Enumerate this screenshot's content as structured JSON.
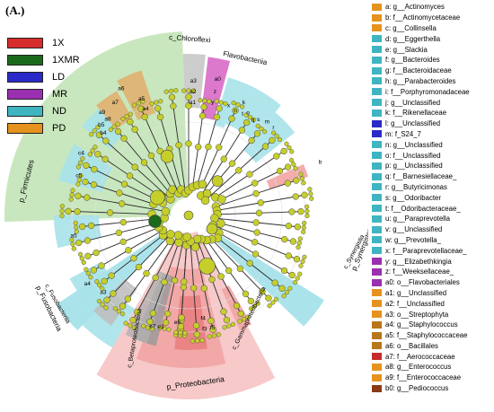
{
  "figure_label": "(A.)",
  "groups": [
    {
      "label": "1X",
      "color": "#d62c2c"
    },
    {
      "label": "1XMR",
      "color": "#1b6a1b"
    },
    {
      "label": "LD",
      "color": "#2a2ac8"
    },
    {
      "label": "MR",
      "color": "#9a2fb0"
    },
    {
      "label": "ND",
      "color": "#3fb5c2"
    },
    {
      "label": "PD",
      "color": "#e6921e"
    }
  ],
  "sectors": {
    "firmicutes": "p_Firmicutes",
    "chloroflexi": "c_Chloroflexi",
    "flavobacteriia": "Flavobacteriia",
    "proteobacteria": "p_Proteobacteria",
    "gammaproteobacteria": "c_Gammaproteobacteria",
    "synergistetes": "p_Synergistetes",
    "synergistia": "c_Synergistia",
    "fusobacteria": "p_Fusobacteria",
    "fusobacteriia": "c_Fusobacteriia",
    "betaproteobacteria": "c_Betaproteobacteria"
  },
  "taxa": [
    {
      "label": "a: g__Actinomyces",
      "color": "#e6921e"
    },
    {
      "label": "b: f__Actinomycetaceae",
      "color": "#e6921e"
    },
    {
      "label": "c: g__Collinsella",
      "color": "#e6921e"
    },
    {
      "label": "d: g__Eggerthella",
      "color": "#3fb5c2"
    },
    {
      "label": "e: g__Slackia",
      "color": "#3fb5c2"
    },
    {
      "label": "f: g__Bacteroides",
      "color": "#3fb5c2"
    },
    {
      "label": "g: f__Bacteroidaceae",
      "color": "#3fb5c2"
    },
    {
      "label": "h: g__Parabacteroides",
      "color": "#3fb5c2"
    },
    {
      "label": "i: f__Porphyromonadaceae",
      "color": "#3fb5c2"
    },
    {
      "label": "j: g__Unclassified",
      "color": "#3fb5c2"
    },
    {
      "label": "k: f__Rikenellaceae",
      "color": "#3fb5c2"
    },
    {
      "label": "l: g__Unclassified",
      "color": "#2a2ac8"
    },
    {
      "label": "m: f_S24_7",
      "color": "#2a2ac8"
    },
    {
      "label": "n: g__Unclassified",
      "color": "#3fb5c2"
    },
    {
      "label": "o: f__Unclassified",
      "color": "#3fb5c2"
    },
    {
      "label": "p: g__Unclassified",
      "color": "#3fb5c2"
    },
    {
      "label": "q: f__Barnesiellaceae_",
      "color": "#3fb5c2"
    },
    {
      "label": "r: g__Butyricimonas",
      "color": "#3fb5c2"
    },
    {
      "label": "s: g__Odoribacter",
      "color": "#3fb5c2"
    },
    {
      "label": "t: f__Odoribacteraceae_",
      "color": "#3fb5c2"
    },
    {
      "label": "u: g__Paraprevotella",
      "color": "#3fb5c2"
    },
    {
      "label": "v: g__Unclassified",
      "color": "#3fb5c2"
    },
    {
      "label": "w: g__Prevotella_",
      "color": "#3fb5c2"
    },
    {
      "label": "x: f__Paraprevotellaceae_",
      "color": "#3fb5c2"
    },
    {
      "label": "y: g__Elizabethkingia",
      "color": "#9a2fb0"
    },
    {
      "label": "z: f__Weeksellaceae_",
      "color": "#9a2fb0"
    },
    {
      "label": "a0: o__Flavobacteriales",
      "color": "#9a2fb0"
    },
    {
      "label": "a1: g__Unclassified",
      "color": "#e6921e"
    },
    {
      "label": "a2: f__Unclassified",
      "color": "#e6921e"
    },
    {
      "label": "a3: o__Streptophyta",
      "color": "#e6921e"
    },
    {
      "label": "a4: g__Staphylococcus",
      "color": "#b9761a"
    },
    {
      "label": "a5: f__Staphylococcaceae",
      "color": "#b9761a"
    },
    {
      "label": "a6: o__Bacillales",
      "color": "#b9761a"
    },
    {
      "label": "a7: f__Aerococcaceae",
      "color": "#c42b2b"
    },
    {
      "label": "a8: g__Enterococcus",
      "color": "#e6921e"
    },
    {
      "label": "a9: f__Enterococcaceae",
      "color": "#e6921e"
    },
    {
      "label": "b0: g__Pediococcus",
      "color": "#8b3a16"
    }
  ]
}
